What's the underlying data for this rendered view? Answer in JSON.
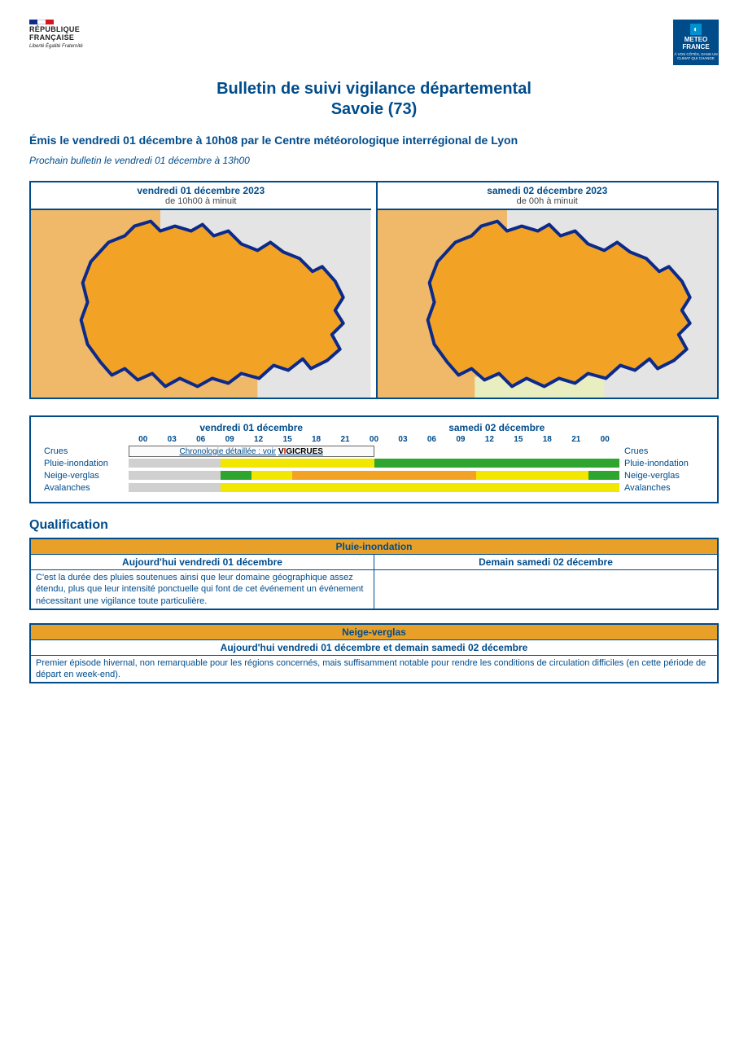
{
  "header": {
    "rf_line1": "RÉPUBLIQUE",
    "rf_line2": "FRANÇAISE",
    "rf_motto": "Liberté Égalité Fraternité",
    "mf_brand": "METEO FRANCE",
    "mf_tagline": "À VOS CÔTÉS, DANS UN CLIMAT QUI CHANGE"
  },
  "title": "Bulletin de suivi vigilance départemental",
  "subtitle": "Savoie (73)",
  "emitted": "Émis le vendredi 01 décembre à 10h08 par le Centre météorologique interrégional de Lyon",
  "next": "Prochain bulletin le vendredi 01 décembre à 13h00",
  "maps": [
    {
      "date": "vendredi 01 décembre 2023",
      "time": "de 10h00 à minuit",
      "dept_fill": "#f2a326",
      "neighbours_left": "#f0b869",
      "neighbours_right": "#e4e4e4",
      "south_fill": "#f0b869"
    },
    {
      "date": "samedi 02 décembre 2023",
      "time": "de 00h à minuit",
      "dept_fill": "#f2a326",
      "neighbours_left": "#f0b869",
      "neighbours_right": "#e4e4e4",
      "south_fill": "#e9eec0"
    }
  ],
  "timeline": {
    "day_labels": [
      "vendredi 01 décembre",
      "samedi 02 décembre"
    ],
    "hours": [
      "00",
      "03",
      "06",
      "09",
      "12",
      "15",
      "18",
      "21",
      "00",
      "03",
      "06",
      "09",
      "12",
      "15",
      "18",
      "21",
      "00"
    ],
    "rows": [
      {
        "label": "Crues",
        "kind": "link",
        "link_text": "Chronologie détaillée : voir ",
        "link_brand_pre": "V",
        "link_brand_i": "I",
        "link_brand_post": "GICRUES"
      },
      {
        "label": "Pluie-inondation",
        "kind": "bar",
        "segments": [
          {
            "from": 0,
            "to": 9,
            "color": "#d0d0d0"
          },
          {
            "from": 9,
            "to": 24,
            "color": "#f2e700"
          },
          {
            "from": 24,
            "to": 48,
            "color": "#2ea52e"
          }
        ]
      },
      {
        "label": "Neige-verglas",
        "kind": "bar",
        "segments": [
          {
            "from": 0,
            "to": 9,
            "color": "#d0d0d0"
          },
          {
            "from": 9,
            "to": 12,
            "color": "#2ea52e"
          },
          {
            "from": 12,
            "to": 16,
            "color": "#f2e700"
          },
          {
            "from": 16,
            "to": 34,
            "color": "#f2a326"
          },
          {
            "from": 34,
            "to": 45,
            "color": "#f2e700"
          },
          {
            "from": 45,
            "to": 48,
            "color": "#2ea52e"
          }
        ]
      },
      {
        "label": "Avalanches",
        "kind": "bar",
        "segments": [
          {
            "from": 0,
            "to": 9,
            "color": "#d0d0d0"
          },
          {
            "from": 9,
            "to": 48,
            "color": "#f2e700"
          }
        ]
      }
    ]
  },
  "section_title": "Qualification",
  "boxes": [
    {
      "title": "Pluie-inondation",
      "layout": "split",
      "cols": [
        "Aujourd'hui vendredi 01 décembre",
        "Demain samedi 02 décembre"
      ],
      "cells": [
        "C'est la durée des pluies soutenues ainsi que leur domaine géographique assez étendu, plus que leur intensité ponctuelle qui font de cet événement un événement nécessitant une vigilance toute particulière.",
        ""
      ]
    },
    {
      "title": "Neige-verglas",
      "layout": "full",
      "cols": [
        "Aujourd'hui vendredi 01 décembre et demain samedi 02 décembre"
      ],
      "cells": [
        "Premier épisode hivernal, non remarquable pour les régions concernés, mais suffisamment notable pour rendre les conditions de circulation difficiles (en cette période de départ en week-end)."
      ]
    }
  ],
  "colors": {
    "blue": "#004c8b",
    "orange_header": "#e8a029"
  }
}
